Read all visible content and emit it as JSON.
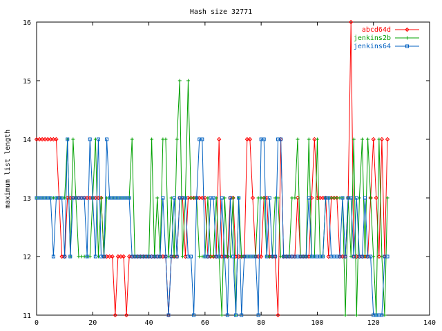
{
  "chart_data": {
    "type": "line",
    "title": "Hash size 32771",
    "xlabel": "",
    "ylabel": "maximum list length",
    "xlim": [
      0,
      140
    ],
    "ylim": [
      11,
      16
    ],
    "xticks": [
      0,
      20,
      40,
      60,
      80,
      100,
      120,
      140
    ],
    "yticks": [
      11,
      12,
      13,
      14,
      15,
      16
    ],
    "grid": false,
    "legend_position": "top-right",
    "series": [
      {
        "name": "abcd64d",
        "color": "#ff0000",
        "marker": "diamond",
        "values": [
          14,
          14,
          14,
          14,
          14,
          14,
          14,
          14,
          13,
          12,
          12,
          13,
          13,
          13,
          13,
          13,
          13,
          13,
          13,
          13,
          13,
          13,
          13,
          13,
          12,
          12,
          12,
          12,
          11,
          12,
          12,
          12,
          11,
          12,
          12,
          12,
          12,
          12,
          12,
          12,
          12,
          12,
          12,
          12,
          12,
          12,
          12,
          11,
          12,
          12,
          12,
          13,
          13,
          12,
          13,
          13,
          13,
          13,
          13,
          13,
          13,
          12,
          12,
          12,
          12,
          14,
          12,
          12,
          12,
          13,
          13,
          12,
          12,
          12,
          12,
          14,
          14,
          13,
          12,
          12,
          12,
          13,
          13,
          12,
          12,
          12,
          11,
          14,
          12,
          12,
          12,
          12,
          12,
          13,
          12,
          12,
          12,
          12,
          13,
          14,
          13,
          13,
          13,
          13,
          12,
          13,
          13,
          13,
          12,
          12,
          12,
          13,
          16,
          12,
          12,
          12,
          12,
          12,
          12,
          13,
          14,
          13,
          12,
          14,
          12,
          14
        ]
      },
      {
        "name": "jenkins2b",
        "color": "#00a000",
        "marker": "plus",
        "values": [
          13,
          13,
          13,
          13,
          13,
          13,
          13,
          13,
          13,
          13,
          13,
          14,
          12,
          14,
          13,
          12,
          12,
          12,
          12,
          12,
          13,
          14,
          12,
          13,
          12,
          13,
          13,
          13,
          13,
          13,
          13,
          13,
          13,
          13,
          14,
          12,
          12,
          12,
          12,
          12,
          12,
          14,
          12,
          13,
          12,
          14,
          14,
          12,
          13,
          12,
          14,
          15,
          12,
          13,
          15,
          13,
          13,
          13,
          12,
          12,
          12,
          13,
          12,
          12,
          13,
          12,
          11,
          13,
          12,
          12,
          13,
          11,
          13,
          12,
          12,
          12,
          12,
          12,
          12,
          13,
          13,
          13,
          12,
          12,
          12,
          13,
          13,
          12,
          12,
          12,
          12,
          13,
          13,
          14,
          12,
          12,
          12,
          14,
          12,
          12,
          14,
          12,
          12,
          13,
          13,
          13,
          13,
          13,
          13,
          13,
          11,
          13,
          12,
          14,
          11,
          13,
          14,
          12,
          14,
          13,
          12,
          11,
          14,
          12,
          11,
          13
        ]
      },
      {
        "name": "jenkins64",
        "color": "#0060c0",
        "marker": "square",
        "values": [
          13,
          13,
          13,
          13,
          13,
          13,
          12,
          13,
          13,
          13,
          12,
          14,
          12,
          13,
          13,
          13,
          13,
          13,
          12,
          14,
          13,
          12,
          14,
          12,
          12,
          14,
          13,
          13,
          13,
          13,
          13,
          13,
          13,
          13,
          12,
          12,
          12,
          12,
          12,
          12,
          12,
          12,
          12,
          12,
          12,
          13,
          12,
          11,
          12,
          13,
          12,
          13,
          13,
          13,
          12,
          12,
          11,
          13,
          14,
          14,
          12,
          12,
          13,
          13,
          12,
          12,
          13,
          12,
          11,
          13,
          12,
          11,
          13,
          11,
          12,
          12,
          12,
          12,
          12,
          11,
          14,
          14,
          12,
          13,
          12,
          12,
          14,
          14,
          12,
          12,
          12,
          12,
          12,
          12,
          12,
          12,
          12,
          13,
          12,
          12,
          12,
          12,
          12,
          13,
          13,
          12,
          12,
          12,
          12,
          13,
          12,
          13,
          13,
          12,
          13,
          12,
          12,
          13,
          12,
          12,
          11,
          11,
          11,
          11,
          12,
          12
        ]
      }
    ]
  }
}
